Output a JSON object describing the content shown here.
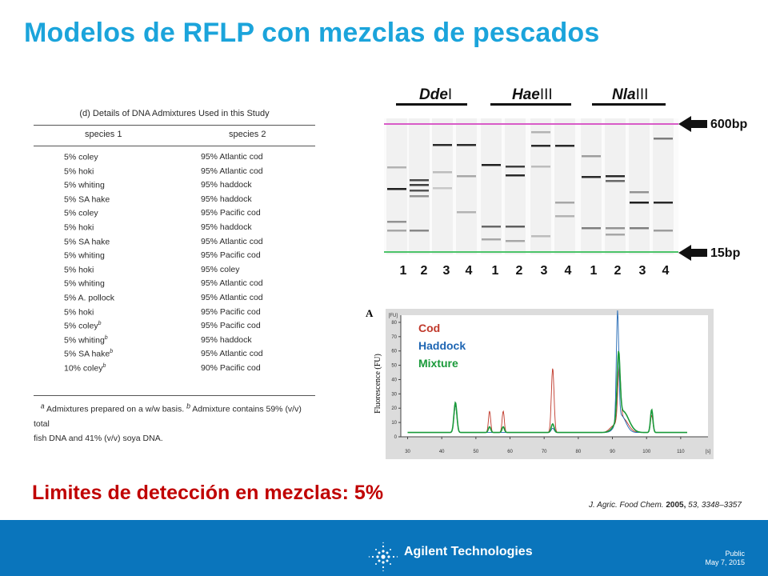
{
  "slide": {
    "title": "Modelos de RFLP con mezclas de pescados",
    "subtitle": "Limites de detección en mezclas: 5%",
    "citation": {
      "journal": "J. Agric. Food Chem.",
      "year": "2005,",
      "volume": "53,",
      "pages": "3348–3357"
    }
  },
  "table": {
    "caption": "(d) Details of DNA Admixtures Used in this Study",
    "col1_header": "species 1",
    "col2_header": "species 2",
    "rows": [
      {
        "s1": "5% coley",
        "s2": "95% Atlantic cod",
        "sup": ""
      },
      {
        "s1": "5% hoki",
        "s2": "95% Atlantic cod",
        "sup": ""
      },
      {
        "s1": "5% whiting",
        "s2": "95% haddock",
        "sup": ""
      },
      {
        "s1": "5% SA hake",
        "s2": "95% haddock",
        "sup": ""
      },
      {
        "s1": "5% coley",
        "s2": "95% Pacific cod",
        "sup": ""
      },
      {
        "s1": "5% hoki",
        "s2": "95% haddock",
        "sup": ""
      },
      {
        "s1": "5% SA hake",
        "s2": "95% Atlantic cod",
        "sup": ""
      },
      {
        "s1": "5% whiting",
        "s2": "95% Pacific cod",
        "sup": ""
      },
      {
        "s1": "5% hoki",
        "s2": "95% coley",
        "sup": ""
      },
      {
        "s1": "5% whiting",
        "s2": "95% Atlantic cod",
        "sup": ""
      },
      {
        "s1": "5% A. pollock",
        "s2": "95% Atlantic cod",
        "sup": ""
      },
      {
        "s1": "5% hoki",
        "s2": "95% Pacific cod",
        "sup": ""
      },
      {
        "s1": "5% coley",
        "s2": "95% Pacific cod",
        "sup": "b"
      },
      {
        "s1": "5% whiting",
        "s2": "95% haddock",
        "sup": "b"
      },
      {
        "s1": "5% SA hake",
        "s2": "95% Atlantic cod",
        "sup": "b"
      },
      {
        "s1": "10% coley",
        "s2": "90% Pacific cod",
        "sup": "b"
      }
    ],
    "footnote_a_marker": "a",
    "footnote_a": "Admixtures prepared on a w/w basis.",
    "footnote_b_marker": "b",
    "footnote_b": "Admixture contains 59% (v/v) total",
    "footnote_line2": "fish DNA and 41% (v/v) soya DNA."
  },
  "gel": {
    "enzymes": [
      {
        "name": "Dde",
        "suffix": "I"
      },
      {
        "name": "Hae",
        "suffix": "III"
      },
      {
        "name": "Nla",
        "suffix": "III"
      }
    ],
    "lane_numbers": [
      "1",
      "2",
      "3",
      "4",
      "1",
      "2",
      "3",
      "4",
      "1",
      "2",
      "3",
      "4"
    ],
    "marker_top": "600bp",
    "marker_bottom": "15bp",
    "marker_top_color": "#d85cc8",
    "marker_bottom_color": "#4cc46a"
  },
  "electropherogram": {
    "panel_letter": "A",
    "y_axis_label": "Fluorescence (FU)",
    "y_axis_unit": "[FU]",
    "x_axis_unit": "[s]",
    "y_ticks": [
      "0",
      "10",
      "20",
      "30",
      "40",
      "50",
      "60",
      "70",
      "80"
    ],
    "x_ticks": [
      "30",
      "40",
      "50",
      "60",
      "70",
      "80",
      "90",
      "100",
      "110"
    ],
    "legend": [
      {
        "label": "Cod",
        "color": "#c0392b"
      },
      {
        "label": "Haddock",
        "color": "#1f66b3"
      },
      {
        "label": "Mixture",
        "color": "#1a9a3a"
      }
    ]
  },
  "footer": {
    "brand": "Agilent Technologies",
    "classification": "Public",
    "date": "May 7, 2015",
    "background": "#0a75bc"
  }
}
